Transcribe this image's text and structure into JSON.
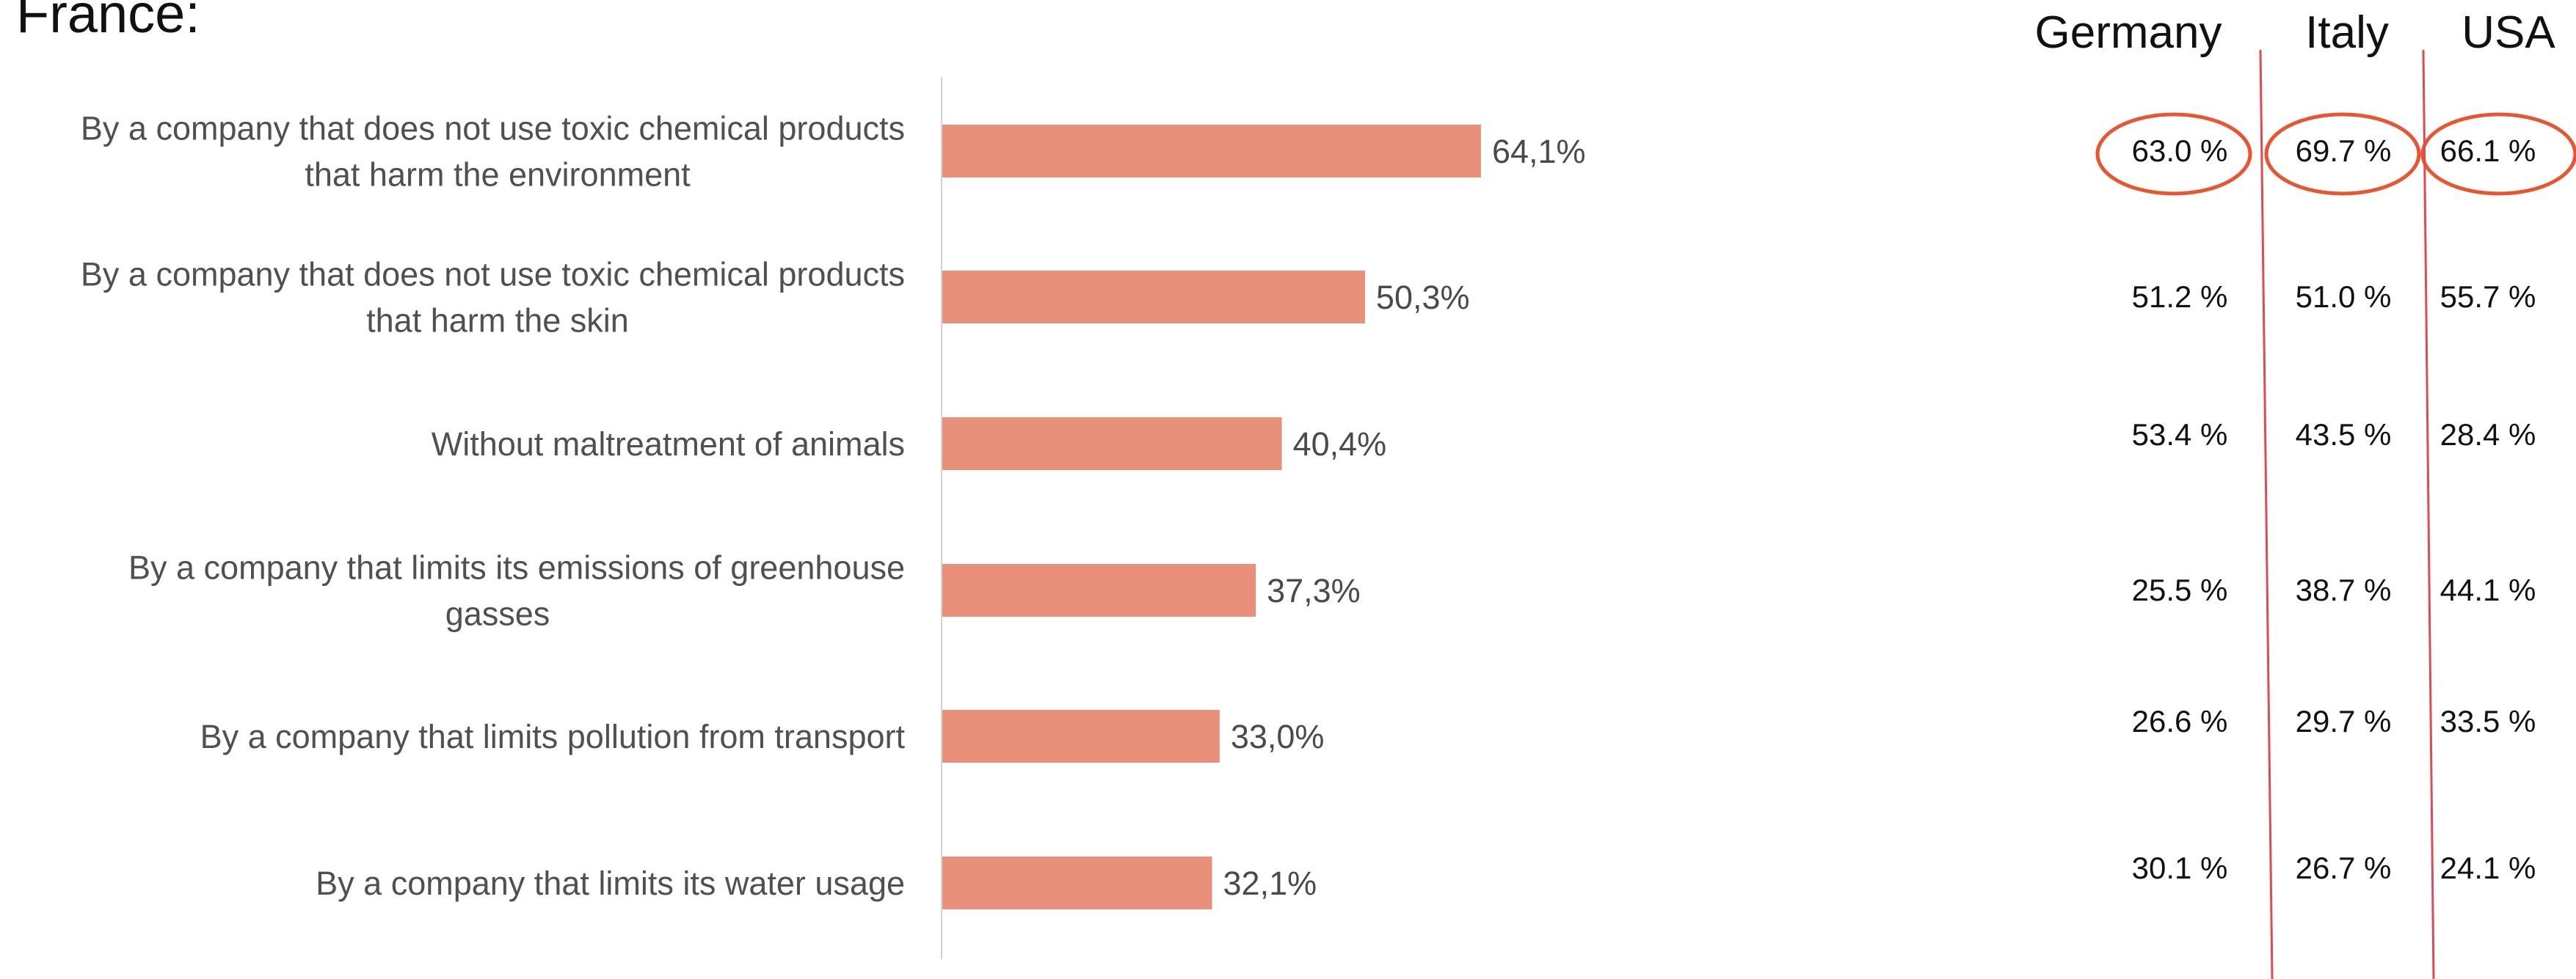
{
  "title": "France:",
  "colors": {
    "bar": "#e8907a",
    "axis": "#d4d4d4",
    "highlight": "#e8552f",
    "divider": "#e04a55"
  },
  "chart_data": {
    "type": "bar",
    "orientation": "horizontal",
    "title": "France:",
    "categories": [
      [
        "By a company that does not use toxic chemical products",
        "that harm the environment"
      ],
      [
        "By a company that does not use toxic chemical products",
        "that harm the skin"
      ],
      [
        "Without maltreatment of animals"
      ],
      [
        "By a company that limits its emissions of greenhouse",
        "gasses"
      ],
      [
        "By a company that limits pollution from transport"
      ],
      [
        "By a company that limits its water usage"
      ]
    ],
    "values": [
      64.1,
      50.3,
      40.4,
      37.3,
      33.0,
      32.1
    ],
    "value_labels": [
      "64,1%",
      "50,3%",
      "40,4%",
      "37,3%",
      "33,0%",
      "32,1%"
    ],
    "xlim": [
      0,
      100
    ],
    "grid": false,
    "legend": "none"
  },
  "comparison": {
    "countries": [
      {
        "name": "Germany",
        "values": [
          "63.0 %",
          "51.2 %",
          "53.4 %",
          "25.5 %",
          "26.6 %",
          "30.1 %"
        ]
      },
      {
        "name": "Italy",
        "values": [
          "69.7 %",
          "51.0 %",
          "43.5 %",
          "38.7 %",
          "29.7 %",
          "26.7 %"
        ]
      },
      {
        "name": "USA",
        "values": [
          "66.1 %",
          "55.7 %",
          "28.4 %",
          "44.1 %",
          "33.5 %",
          "24.1 %"
        ]
      }
    ],
    "highlighted_row": 0
  }
}
